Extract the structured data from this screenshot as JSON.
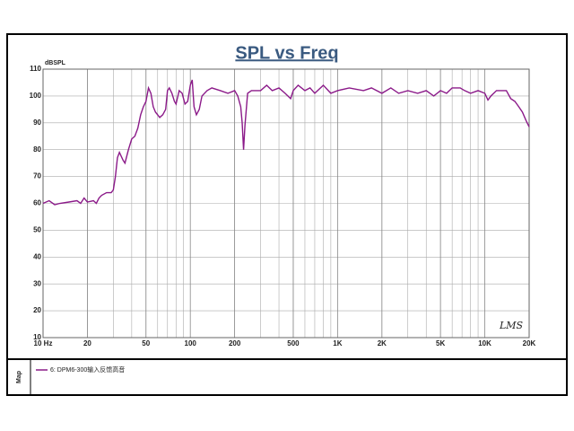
{
  "chart_data": {
    "type": "line",
    "title": "SPL vs Freq",
    "y_label": "dBSPL",
    "logo": "LMS",
    "legend_label": "Map",
    "x": [
      10,
      11,
      12,
      13,
      15,
      17,
      18,
      19,
      20,
      22,
      23,
      24,
      25,
      27,
      29,
      30,
      31,
      32,
      33,
      35,
      36,
      38,
      40,
      42,
      44,
      46,
      48,
      50,
      52,
      54,
      56,
      58,
      62,
      65,
      68,
      70,
      72,
      75,
      78,
      80,
      84,
      88,
      92,
      96,
      100,
      103,
      106,
      110,
      115,
      120,
      130,
      140,
      160,
      180,
      200,
      210,
      220,
      225,
      230,
      235,
      245,
      260,
      300,
      330,
      360,
      400,
      440,
      480,
      500,
      540,
      600,
      650,
      700,
      800,
      900,
      1000,
      1200,
      1500,
      1700,
      2000,
      2300,
      2600,
      3000,
      3500,
      4000,
      4500,
      5000,
      5500,
      6000,
      6800,
      7300,
      8000,
      9000,
      10000,
      10500,
      11000,
      12000,
      14000,
      15000,
      16000,
      17000,
      18000,
      19000,
      20000
    ],
    "series": [
      {
        "name": "6: DPM6-300输入反馈高音",
        "color": "#8b1a89",
        "values": [
          60,
          61,
          59.5,
          60,
          60.5,
          61,
          60,
          62,
          60.5,
          61,
          60,
          62,
          63,
          64,
          64,
          65,
          70,
          77,
          79,
          76,
          75,
          80,
          84,
          85,
          88,
          93,
          96,
          98,
          103,
          101,
          96,
          94,
          92,
          93,
          95,
          102,
          103,
          101,
          98,
          97,
          102,
          101,
          97,
          98,
          104,
          106,
          96,
          93,
          95,
          100,
          102,
          103,
          102,
          101,
          102,
          100,
          96,
          90,
          80,
          89,
          101,
          102,
          102,
          104,
          102,
          103,
          101,
          99,
          102,
          104,
          102,
          103,
          101,
          104,
          101,
          102,
          103,
          102,
          103,
          101,
          103,
          101,
          102,
          101,
          102,
          100,
          102,
          101,
          103,
          103,
          102,
          101,
          102,
          101,
          98.5,
          100,
          102,
          102,
          99,
          98,
          96,
          94,
          91,
          88.5
        ]
      }
    ],
    "xlim": [
      10,
      20000
    ],
    "ylim": [
      10,
      110
    ],
    "log_x": true,
    "grid": true,
    "xticks": [
      {
        "value": 10,
        "label": "10 Hz"
      },
      20,
      50,
      100,
      200,
      500,
      {
        "value": 1000,
        "label": "1K"
      },
      {
        "value": 2000,
        "label": "2K"
      },
      {
        "value": 5000,
        "label": "5K"
      },
      {
        "value": 10000,
        "label": "10K"
      },
      {
        "value": 20000,
        "label": "20K"
      }
    ],
    "yticks": [
      10,
      20,
      30,
      40,
      50,
      60,
      70,
      80,
      90,
      100,
      110
    ]
  }
}
